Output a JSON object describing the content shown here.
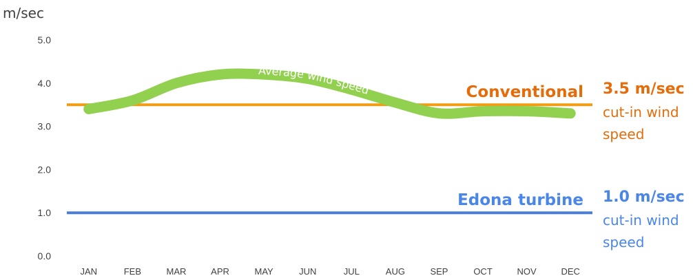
{
  "chart_data": {
    "type": "line",
    "ylabel": "m/sec",
    "ylim": [
      0,
      5
    ],
    "yticks": [
      "0.0",
      "1.0",
      "2.0",
      "3.0",
      "4.0",
      "5.0"
    ],
    "categories": [
      "JAN",
      "FEB",
      "MAR",
      "APR",
      "MAY",
      "JUN",
      "JUL",
      "AUG",
      "SEP",
      "OCT",
      "NOV",
      "DEC"
    ],
    "series": [
      {
        "name": "Average wind speed",
        "color": "#92d050",
        "values": [
          3.4,
          3.6,
          4.0,
          4.2,
          4.2,
          4.1,
          3.85,
          3.55,
          3.3,
          3.35,
          3.35,
          3.3
        ]
      }
    ],
    "reference_lines": [
      {
        "name": "Conventional",
        "value": 3.5,
        "value_label": "3.5 m/sec",
        "desc_lines": [
          "cut-in wind",
          "speed"
        ],
        "color": "#f29c12",
        "text_color": "#e46c0a"
      },
      {
        "name": "Edona turbine",
        "value": 1.0,
        "value_label": "1.0 m/sec",
        "desc_lines": [
          "cut-in wind",
          "speed"
        ],
        "color": "#4a7fd8",
        "text_color": "#4a86e8"
      }
    ]
  }
}
